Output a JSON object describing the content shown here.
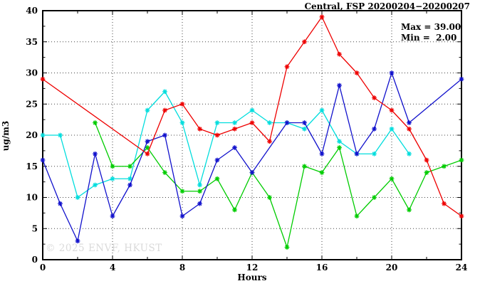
{
  "chart_data": {
    "type": "line",
    "title": "Central, FSP 20200204−20200207",
    "xlabel": "Hours",
    "ylabel": "ug/m3",
    "xlim": [
      0,
      24
    ],
    "ylim": [
      0,
      40
    ],
    "x_major_ticks": [
      0,
      4,
      8,
      12,
      16,
      20,
      24
    ],
    "x_minor_step": 2,
    "y_major_ticks": [
      0,
      5,
      10,
      15,
      20,
      25,
      30,
      35,
      40
    ],
    "y_minor_step": 2.5,
    "grid": {
      "x_lines": [
        4,
        8,
        12,
        16,
        20
      ],
      "y_lines": [
        5,
        10,
        15,
        20,
        25,
        30,
        35
      ]
    },
    "annotations": {
      "max_label": "Max = 39.00",
      "min_label": "Min =  2.00"
    },
    "watermark": "© 2025 ENVF, HKUST",
    "series": [
      {
        "name": "cyan",
        "color": "#00dddd",
        "points": [
          [
            0,
            20
          ],
          [
            1,
            20
          ],
          [
            2,
            10
          ],
          [
            3,
            12
          ],
          [
            4,
            13
          ],
          [
            5,
            13
          ],
          [
            6,
            24
          ],
          [
            7,
            27
          ],
          [
            8,
            22
          ],
          [
            9,
            12
          ],
          [
            10,
            22
          ],
          [
            11,
            22
          ],
          [
            12,
            24
          ],
          [
            13,
            22
          ],
          [
            14,
            22
          ],
          [
            15,
            21
          ],
          [
            16,
            24
          ],
          [
            17,
            19
          ],
          [
            18,
            17
          ],
          [
            19,
            17
          ],
          [
            20,
            21
          ],
          [
            21,
            17
          ]
        ]
      },
      {
        "name": "green",
        "color": "#00cc00",
        "points": [
          [
            3,
            22
          ],
          [
            4,
            15
          ],
          [
            5,
            15
          ],
          [
            6,
            18
          ],
          [
            7,
            14
          ],
          [
            8,
            11
          ],
          [
            9,
            11
          ],
          [
            10,
            13
          ],
          [
            11,
            8
          ],
          [
            12,
            14
          ],
          [
            13,
            10
          ],
          [
            14,
            2
          ],
          [
            15,
            15
          ],
          [
            16,
            14
          ],
          [
            17,
            18
          ],
          [
            18,
            7
          ],
          [
            19,
            10
          ],
          [
            20,
            13
          ],
          [
            21,
            8
          ],
          [
            22,
            14
          ],
          [
            23,
            15
          ],
          [
            24,
            16
          ]
        ]
      },
      {
        "name": "blue",
        "color": "#1111cc",
        "points": [
          [
            0,
            16
          ],
          [
            1,
            9
          ],
          [
            2,
            3
          ],
          [
            3,
            17
          ],
          [
            4,
            7
          ],
          [
            5,
            12
          ],
          [
            6,
            19
          ],
          [
            7,
            20
          ],
          [
            8,
            7
          ],
          [
            9,
            9
          ],
          [
            10,
            16
          ],
          [
            11,
            18
          ],
          [
            12,
            14
          ],
          [
            14,
            22
          ],
          [
            15,
            22
          ],
          [
            16,
            17
          ],
          [
            17,
            28
          ],
          [
            18,
            17
          ],
          [
            19,
            21
          ],
          [
            20,
            30
          ],
          [
            21,
            22
          ],
          [
            24,
            29
          ]
        ]
      },
      {
        "name": "red",
        "color": "#ee0000",
        "points": [
          [
            0,
            29
          ],
          [
            6,
            17
          ],
          [
            7,
            24
          ],
          [
            8,
            25
          ],
          [
            9,
            21
          ],
          [
            10,
            20
          ],
          [
            11,
            21
          ],
          [
            12,
            22
          ],
          [
            13,
            19
          ],
          [
            14,
            31
          ],
          [
            15,
            35
          ],
          [
            16,
            39
          ],
          [
            17,
            33
          ],
          [
            18,
            30
          ],
          [
            19,
            26
          ],
          [
            20,
            24
          ],
          [
            21,
            21
          ],
          [
            22,
            16
          ],
          [
            23,
            9
          ],
          [
            24,
            7
          ]
        ]
      }
    ]
  },
  "colors": {
    "axis": "#000000",
    "grid": "#444444",
    "watermark": "#dadada",
    "background": "#ffffff"
  }
}
